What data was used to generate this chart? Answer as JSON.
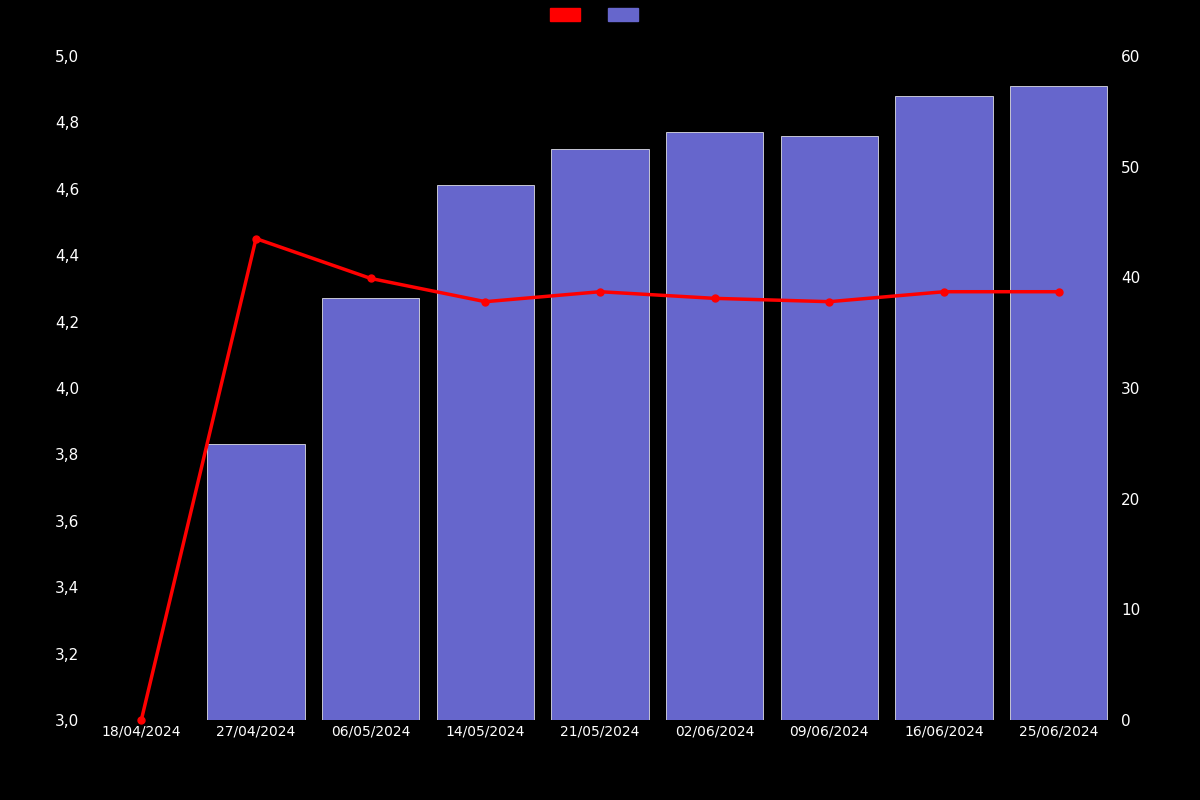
{
  "categories": [
    "18/04/2024",
    "27/04/2024",
    "06/05/2024",
    "14/05/2024",
    "21/05/2024",
    "02/06/2024",
    "09/06/2024",
    "16/06/2024",
    "25/06/2024"
  ],
  "bar_values": [
    null,
    3.83,
    4.27,
    4.61,
    4.72,
    4.77,
    4.76,
    4.88,
    4.91
  ],
  "line_values": [
    3.0,
    4.45,
    4.33,
    4.26,
    4.29,
    4.27,
    4.26,
    4.29,
    4.29
  ],
  "bar_color": "#6666cc",
  "line_color": "#ff0000",
  "background_color": "#000000",
  "text_color": "#ffffff",
  "ylim_left": [
    3.0,
    5.0
  ],
  "ylim_right": [
    0,
    60
  ],
  "yticks_left": [
    3.0,
    3.2,
    3.4,
    3.6,
    3.8,
    4.0,
    4.2,
    4.4,
    4.6,
    4.8,
    5.0
  ],
  "yticks_right": [
    0,
    10,
    20,
    30,
    40,
    50,
    60
  ],
  "figsize": [
    12.0,
    8.0
  ],
  "dpi": 100,
  "bar_width": 0.85
}
